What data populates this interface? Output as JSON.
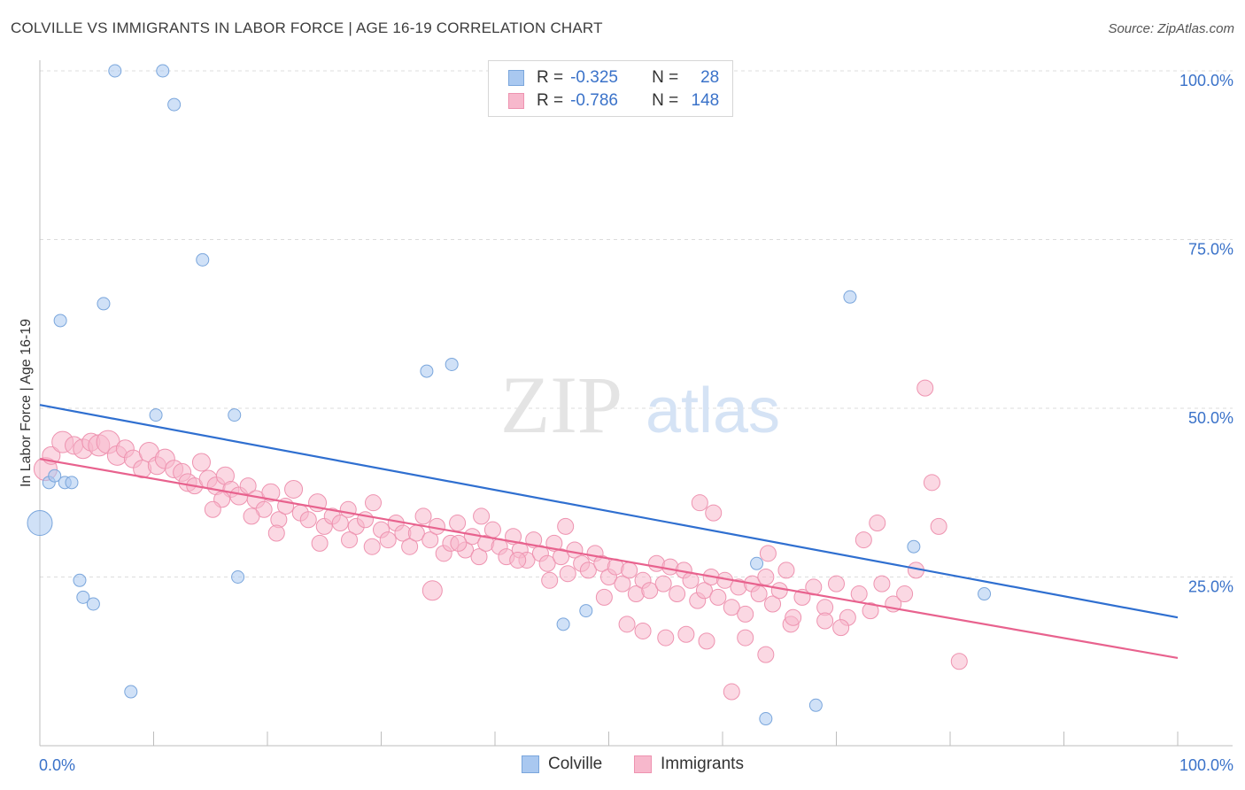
{
  "title": "COLVILLE VS IMMIGRANTS IN LABOR FORCE | AGE 16-19 CORRELATION CHART",
  "source": "Source: ZipAtlas.com",
  "watermark": {
    "zip": "ZIP",
    "atlas": "atlas"
  },
  "legend": {
    "r_label": "R =",
    "n_label": "N =",
    "colville": {
      "r": "-0.325",
      "n": "28"
    },
    "immigrants": {
      "r": "-0.786",
      "n": "148"
    }
  },
  "colors": {
    "colville_fill": "#a9c8f0",
    "colville_stroke": "#7aa6dc",
    "colville_line": "#2f6fd0",
    "immigrants_fill": "#f7b8cc",
    "immigrants_stroke": "#ee93b0",
    "immigrants_line": "#e8628e",
    "axis_label": "#3a72c9",
    "grid": "#dcdcdc"
  },
  "chart_data": {
    "type": "scatter",
    "title": "COLVILLE VS IMMIGRANTS IN LABOR FORCE | AGE 16-19 CORRELATION CHART",
    "xlabel": "",
    "ylabel": "In Labor Force | Age 16-19",
    "xlim": [
      0,
      100
    ],
    "ylim": [
      0,
      105
    ],
    "x_tick_labels": [
      "0.0%",
      "100.0%"
    ],
    "y_ticks": [
      {
        "value": 25,
        "label": "25.0%"
      },
      {
        "value": 50,
        "label": "50.0%"
      },
      {
        "value": 75,
        "label": "75.0%"
      },
      {
        "value": 100,
        "label": "100.0%"
      }
    ],
    "grid": true,
    "legend_position": "top-center",
    "series": [
      {
        "name": "Colville",
        "trend": {
          "x": [
            0,
            100
          ],
          "y": [
            50.5,
            19.0
          ]
        },
        "points": [
          [
            0.0,
            33.0,
            14
          ],
          [
            0.8,
            39.0,
            7
          ],
          [
            1.3,
            40.0,
            7
          ],
          [
            1.8,
            63.0,
            7
          ],
          [
            2.2,
            39.0,
            7
          ],
          [
            2.8,
            39.0,
            7
          ],
          [
            3.5,
            24.5,
            7
          ],
          [
            3.8,
            22.0,
            7
          ],
          [
            4.7,
            21.0,
            7
          ],
          [
            5.6,
            65.5,
            7
          ],
          [
            6.6,
            100.0,
            7
          ],
          [
            8.0,
            8.0,
            7
          ],
          [
            10.2,
            49.0,
            7
          ],
          [
            10.8,
            100.0,
            7
          ],
          [
            11.8,
            95.0,
            7
          ],
          [
            14.3,
            72.0,
            7
          ],
          [
            17.1,
            49.0,
            7
          ],
          [
            17.4,
            25.0,
            7
          ],
          [
            34.0,
            55.5,
            7
          ],
          [
            36.2,
            56.5,
            7
          ],
          [
            46.0,
            18.0,
            7
          ],
          [
            48.0,
            20.0,
            7
          ],
          [
            63.0,
            27.0,
            7
          ],
          [
            63.8,
            4.0,
            7
          ],
          [
            68.2,
            6.0,
            7
          ],
          [
            71.2,
            66.5,
            7
          ],
          [
            76.8,
            29.5,
            7
          ],
          [
            83.0,
            22.5,
            7
          ]
        ]
      },
      {
        "name": "Immigrants",
        "trend": {
          "x": [
            0,
            100
          ],
          "y": [
            42.5,
            13.0
          ]
        },
        "points": [
          [
            0.5,
            41.0,
            13
          ],
          [
            1.0,
            43.0,
            10
          ],
          [
            2.0,
            45.0,
            12
          ],
          [
            3.0,
            44.5,
            10
          ],
          [
            3.8,
            44.0,
            11
          ],
          [
            4.5,
            45.0,
            10
          ],
          [
            5.2,
            44.5,
            12
          ],
          [
            6.0,
            45.0,
            13
          ],
          [
            6.8,
            43.0,
            11
          ],
          [
            7.5,
            44.0,
            10
          ],
          [
            8.2,
            42.5,
            10
          ],
          [
            9.0,
            41.0,
            10
          ],
          [
            9.6,
            43.5,
            11
          ],
          [
            10.3,
            41.5,
            10
          ],
          [
            11.0,
            42.5,
            11
          ],
          [
            11.8,
            41.0,
            10
          ],
          [
            12.5,
            40.5,
            10
          ],
          [
            13.0,
            39.0,
            10
          ],
          [
            13.6,
            38.5,
            9
          ],
          [
            14.2,
            42.0,
            10
          ],
          [
            14.8,
            39.5,
            10
          ],
          [
            15.5,
            38.5,
            10
          ],
          [
            16.3,
            40.0,
            10
          ],
          [
            16.8,
            38.0,
            9
          ],
          [
            17.5,
            37.0,
            10
          ],
          [
            18.3,
            38.5,
            9
          ],
          [
            19.0,
            36.5,
            10
          ],
          [
            19.7,
            35.0,
            9
          ],
          [
            20.3,
            37.5,
            10
          ],
          [
            21.0,
            33.5,
            9
          ],
          [
            21.6,
            35.5,
            9
          ],
          [
            22.3,
            38.0,
            10
          ],
          [
            22.9,
            34.5,
            9
          ],
          [
            23.6,
            33.5,
            9
          ],
          [
            24.4,
            36.0,
            10
          ],
          [
            25.0,
            32.5,
            9
          ],
          [
            25.7,
            34.0,
            9
          ],
          [
            26.4,
            33.0,
            9
          ],
          [
            27.1,
            35.0,
            9
          ],
          [
            27.8,
            32.5,
            9
          ],
          [
            28.6,
            33.5,
            9
          ],
          [
            29.3,
            36.0,
            9
          ],
          [
            30.0,
            32.0,
            9
          ],
          [
            30.6,
            30.5,
            9
          ],
          [
            31.3,
            33.0,
            9
          ],
          [
            31.9,
            31.5,
            9
          ],
          [
            32.5,
            29.5,
            9
          ],
          [
            33.1,
            31.5,
            9
          ],
          [
            33.7,
            34.0,
            9
          ],
          [
            34.3,
            30.5,
            9
          ],
          [
            34.9,
            32.5,
            9
          ],
          [
            35.5,
            28.5,
            9
          ],
          [
            36.1,
            30.0,
            9
          ],
          [
            36.7,
            33.0,
            9
          ],
          [
            37.4,
            29.0,
            9
          ],
          [
            38.0,
            31.0,
            9
          ],
          [
            38.6,
            28.0,
            9
          ],
          [
            39.2,
            30.0,
            9
          ],
          [
            39.8,
            32.0,
            9
          ],
          [
            40.4,
            29.5,
            9
          ],
          [
            41.0,
            28.0,
            9
          ],
          [
            41.6,
            31.0,
            9
          ],
          [
            42.2,
            29.0,
            9
          ],
          [
            42.8,
            27.5,
            9
          ],
          [
            43.4,
            30.5,
            9
          ],
          [
            44.0,
            28.5,
            9
          ],
          [
            44.6,
            27.0,
            9
          ],
          [
            45.2,
            30.0,
            9
          ],
          [
            45.8,
            28.0,
            9
          ],
          [
            46.4,
            25.5,
            9
          ],
          [
            47.0,
            29.0,
            9
          ],
          [
            47.6,
            27.0,
            9
          ],
          [
            48.2,
            26.0,
            9
          ],
          [
            48.8,
            28.5,
            9
          ],
          [
            49.4,
            27.0,
            9
          ],
          [
            50.0,
            25.0,
            9
          ],
          [
            50.6,
            26.5,
            9
          ],
          [
            51.2,
            24.0,
            9
          ],
          [
            51.8,
            26.0,
            9
          ],
          [
            52.4,
            22.5,
            9
          ],
          [
            53.0,
            24.5,
            9
          ],
          [
            53.6,
            23.0,
            9
          ],
          [
            54.2,
            27.0,
            9
          ],
          [
            54.8,
            24.0,
            9
          ],
          [
            55.4,
            26.5,
            9
          ],
          [
            56.0,
            22.5,
            9
          ],
          [
            56.6,
            26.0,
            9
          ],
          [
            57.2,
            24.5,
            9
          ],
          [
            57.8,
            21.5,
            9
          ],
          [
            58.4,
            23.0,
            9
          ],
          [
            59.0,
            25.0,
            9
          ],
          [
            59.6,
            22.0,
            9
          ],
          [
            60.2,
            24.5,
            9
          ],
          [
            60.8,
            20.5,
            9
          ],
          [
            61.4,
            23.5,
            9
          ],
          [
            62.0,
            19.5,
            9
          ],
          [
            62.6,
            24.0,
            9
          ],
          [
            63.2,
            22.5,
            9
          ],
          [
            63.8,
            25.0,
            9
          ],
          [
            64.4,
            21.0,
            9
          ],
          [
            65.0,
            23.0,
            9
          ],
          [
            66.0,
            18.0,
            9
          ],
          [
            67.0,
            22.0,
            9
          ],
          [
            68.0,
            23.5,
            9
          ],
          [
            69.0,
            20.5,
            9
          ],
          [
            70.0,
            24.0,
            9
          ],
          [
            71.0,
            19.0,
            9
          ],
          [
            72.0,
            22.5,
            9
          ],
          [
            73.0,
            20.0,
            9
          ],
          [
            74.0,
            24.0,
            9
          ],
          [
            75.0,
            21.0,
            9
          ],
          [
            76.0,
            22.5,
            9
          ],
          [
            77.0,
            26.0,
            9
          ],
          [
            64.0,
            28.5,
            9
          ],
          [
            65.6,
            26.0,
            9
          ],
          [
            58.0,
            36.0,
            9
          ],
          [
            59.2,
            34.5,
            9
          ],
          [
            72.4,
            30.5,
            9
          ],
          [
            73.6,
            33.0,
            9
          ],
          [
            77.8,
            53.0,
            9
          ],
          [
            78.4,
            39.0,
            9
          ],
          [
            79.0,
            32.5,
            9
          ],
          [
            80.8,
            12.5,
            9
          ],
          [
            60.8,
            8.0,
            9
          ],
          [
            62.0,
            16.0,
            9
          ],
          [
            63.8,
            13.5,
            9
          ],
          [
            66.2,
            19.0,
            9
          ],
          [
            69.0,
            18.5,
            9
          ],
          [
            70.4,
            17.5,
            9
          ],
          [
            53.0,
            17.0,
            9
          ],
          [
            55.0,
            16.0,
            9
          ],
          [
            56.8,
            16.5,
            9
          ],
          [
            58.6,
            15.5,
            9
          ],
          [
            34.5,
            23.0,
            11
          ],
          [
            44.8,
            24.5,
            9
          ],
          [
            42.0,
            27.5,
            9
          ],
          [
            46.2,
            32.5,
            9
          ],
          [
            38.8,
            34.0,
            9
          ],
          [
            36.8,
            30.0,
            9
          ],
          [
            29.2,
            29.5,
            9
          ],
          [
            27.2,
            30.5,
            9
          ],
          [
            24.6,
            30.0,
            9
          ],
          [
            20.8,
            31.5,
            9
          ],
          [
            18.6,
            34.0,
            9
          ],
          [
            16.0,
            36.5,
            9
          ],
          [
            15.2,
            35.0,
            9
          ],
          [
            49.6,
            22.0,
            9
          ],
          [
            51.6,
            18.0,
            9
          ]
        ]
      }
    ]
  }
}
